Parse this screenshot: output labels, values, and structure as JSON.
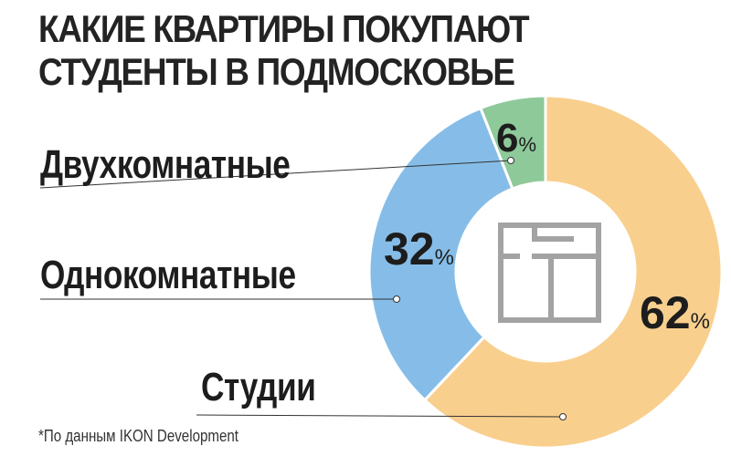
{
  "title_lines": [
    "КАКИЕ КВАРТИРЫ ПОКУПАЮТ",
    "СТУДЕНТЫ В ПОДМОСКОВЬЕ"
  ],
  "source_note": "*По данным IKON Development",
  "icon": "floor-plan-icon",
  "chart_data": {
    "type": "pie",
    "title": "КАКИЕ КВАРТИРЫ ПОКУПАЮТ СТУДЕНТЫ В ПОДМОСКОВЬЕ",
    "donut": true,
    "categories": [
      "Студии",
      "Однокомнатные",
      "Двухкомнатные"
    ],
    "values": [
      62,
      32,
      6
    ],
    "unit": "%",
    "colors": [
      "#f9cf8e",
      "#86bde8",
      "#8ec99a"
    ],
    "legend": "callout labels left"
  }
}
